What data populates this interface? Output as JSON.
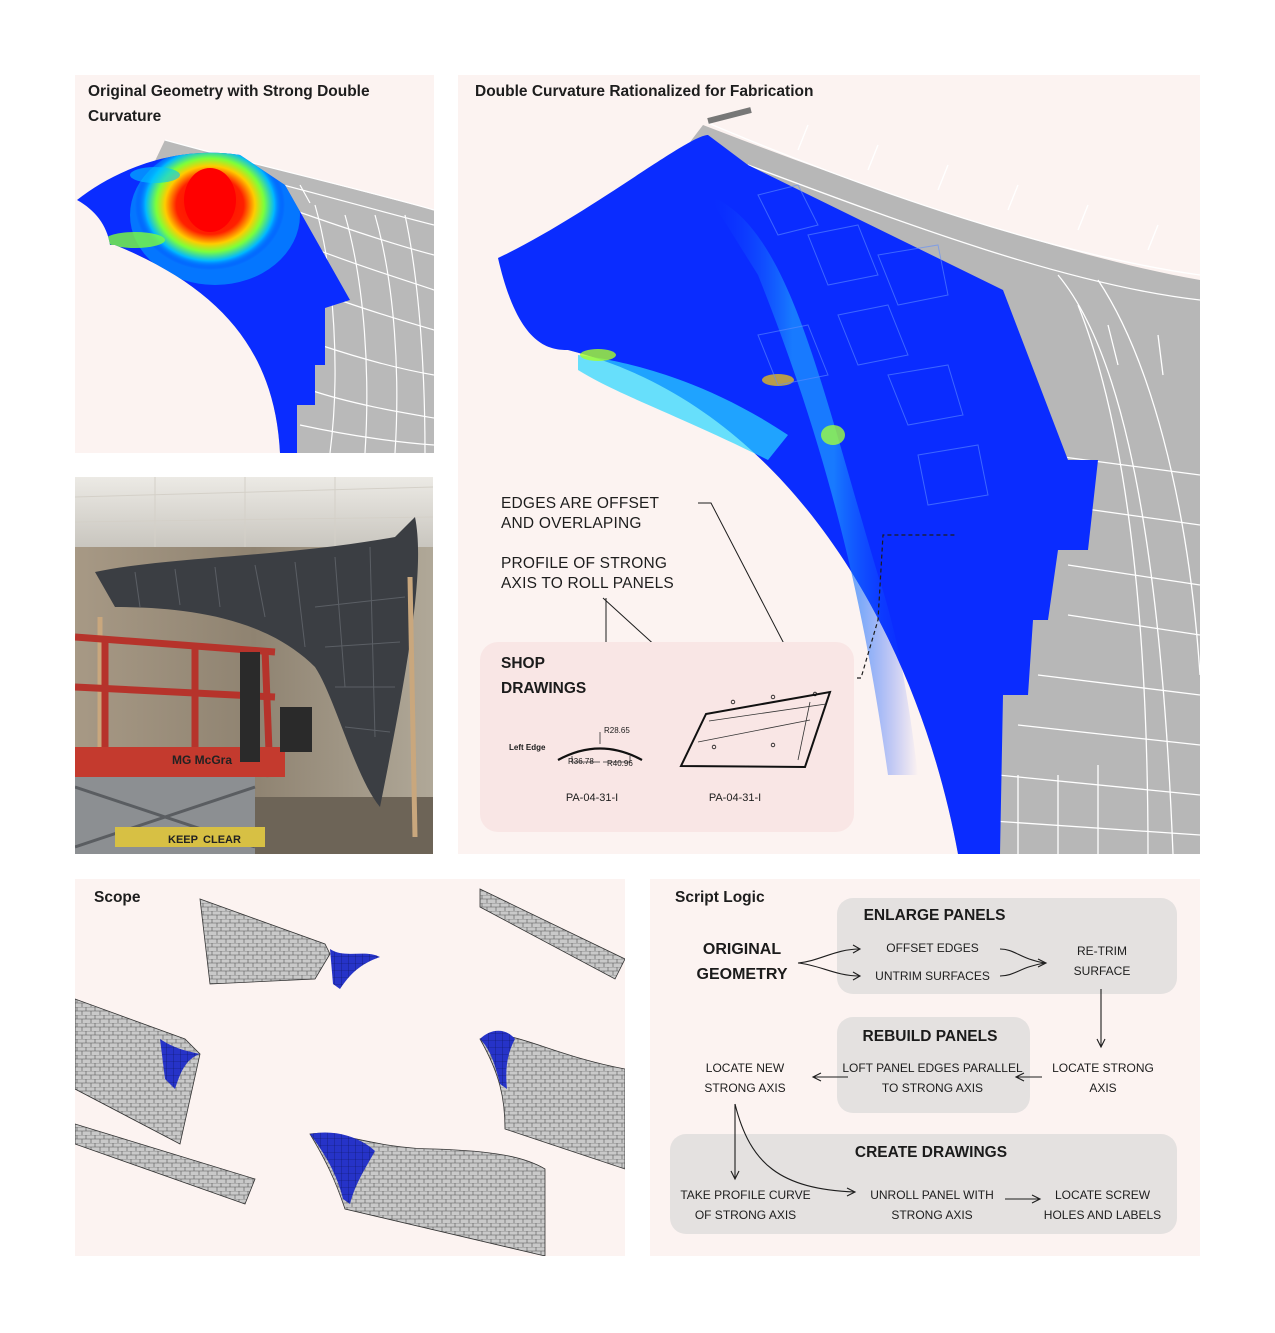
{
  "panels": {
    "original": {
      "title": "Original Geometry with Strong Double Curvature"
    },
    "rationalized": {
      "title": "Double Curvature Rationalized for Fabrication",
      "callout_edges": "EDGES  ARE OFFSET AND OVERLAPING",
      "callout_profile": "PROFILE OF STRONG AXIS TO ROLL PANELS",
      "shop": {
        "title": "SHOP DRAWINGS",
        "left_edge": "Left Edge",
        "r1": "R28.65",
        "r2": "R36.78",
        "r3": "R40.96",
        "label1": "PA-04-31-I",
        "label2": "PA-04-31-I"
      }
    },
    "photo": {
      "lift_brand": "MG McGra",
      "lift_warning_left": "KEEP",
      "lift_warning_right": "CLEAR"
    },
    "scope": {
      "title": "Scope"
    },
    "script": {
      "title": "Script Logic",
      "original_geometry": "ORIGINAL GEOMETRY",
      "enlarge": {
        "title": "ENLARGE PANELS",
        "offset_edges": "OFFSET EDGES",
        "untrim_surfaces": "UNTRIM SURFACES",
        "retrim": "RE-TRIM SURFACE"
      },
      "rebuild": {
        "title": "REBUILD PANELS",
        "loft": "LOFT PANEL EDGES PARALLEL TO STRONG AXIS",
        "locate_strong": "LOCATE STRONG AXIS",
        "locate_new": "LOCATE NEW STRONG AXIS"
      },
      "create": {
        "title": "CREATE DRAWINGS",
        "profile": "TAKE PROFILE CURVE OF STRONG AXIS",
        "unroll": "UNROLL PANEL WITH STRONG AXIS",
        "screw": "LOCATE SCREW HOLES AND LABELS"
      }
    }
  }
}
